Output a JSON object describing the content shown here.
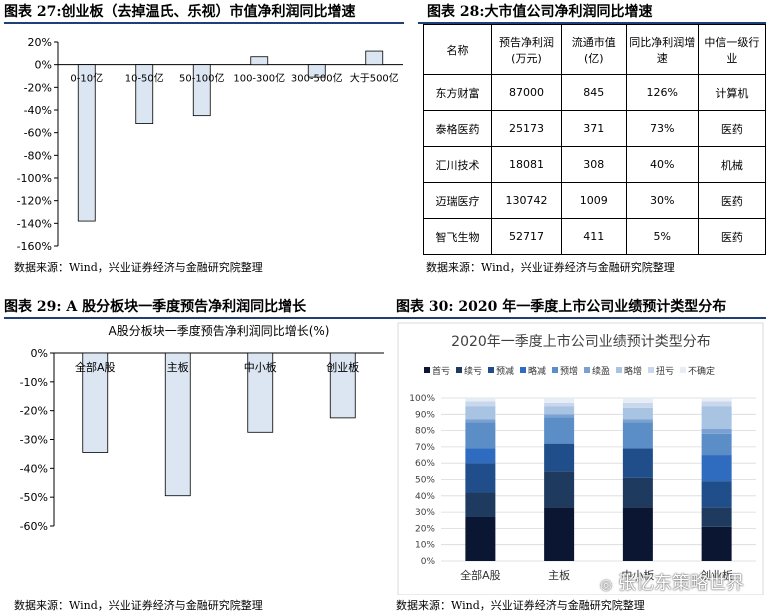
{
  "panel27": {
    "title": "图表 27:创业板（去掉温氏、乐视）市值净利润同比增速",
    "source": "数据来源：Wind，兴业证券经济与金融研究院整理"
  },
  "panel28": {
    "title": "图表 28:大市值公司净利润同比增速",
    "source": "数据来源：Wind，兴业证券经济与金融研究院整理",
    "headers": [
      "名称",
      "预告净利润(万元)",
      "流通市值(亿)",
      "同比净利润增速",
      "中信一级行业"
    ],
    "rows": [
      [
        "东方财富",
        "87000",
        "845",
        "126%",
        "计算机"
      ],
      [
        "泰格医药",
        "25173",
        "371",
        "73%",
        "医药"
      ],
      [
        "汇川技术",
        "18081",
        "308",
        "40%",
        "机械"
      ],
      [
        "迈瑞医疗",
        "130742",
        "1009",
        "30%",
        "医药"
      ],
      [
        "智飞生物",
        "52717",
        "411",
        "5%",
        "医药"
      ]
    ]
  },
  "panel29": {
    "title": "图表 29:  A 股分板块一季度预告净利润同比增长",
    "source": "数据来源：Wind，兴业证券经济与金融研究院整理"
  },
  "panel30": {
    "title": "图表 30:  2020 年一季度上市公司业绩预计类型分布",
    "source": "数据来源：Wind，兴业证券经济与金融研究院整理"
  },
  "watermark": "张忆东策略世界",
  "colors": {
    "bar": "#dce6f2",
    "bar_border": "#000000",
    "header_line": "#1f3f7a"
  },
  "chart_data": [
    {
      "id": "c27",
      "type": "bar",
      "title": "",
      "categories": [
        "0-10亿",
        "10-50亿",
        "50-100亿",
        "100-300亿",
        "300-500亿",
        "大于500亿"
      ],
      "values": [
        -138,
        -52,
        -45,
        7,
        -11,
        12
      ],
      "ylim": [
        -160,
        20
      ],
      "yticks": [
        20,
        0,
        -20,
        -40,
        -60,
        -80,
        -100,
        -120,
        -140,
        -160
      ],
      "ytick_labels": [
        "20%",
        "0%",
        "-20%",
        "-40%",
        "-60%",
        "-80%",
        "-100%",
        "-120%",
        "-140%",
        "-160%"
      ],
      "grid": false
    },
    {
      "id": "c29",
      "type": "bar",
      "title": "A股分板块一季度预告净利润同比增长(%)",
      "categories": [
        "全部A股",
        "主板",
        "中小板",
        "创业板"
      ],
      "values": [
        -34.5,
        -49.5,
        -27.5,
        -22.5
      ],
      "ylim": [
        -60,
        0
      ],
      "yticks": [
        0,
        -10,
        -20,
        -30,
        -40,
        -50,
        -60
      ],
      "ytick_labels": [
        "0%",
        "-10%",
        "-20%",
        "-30%",
        "-40%",
        "-50%",
        "-60%"
      ],
      "grid": false
    },
    {
      "id": "c30",
      "type": "bar",
      "stacked": true,
      "title": "2020年一季度上市公司业绩预计类型分布",
      "categories": [
        "全部A股",
        "主板",
        "中小板",
        "创业板"
      ],
      "ylim": [
        0,
        100
      ],
      "yticks": [
        0,
        10,
        20,
        30,
        40,
        50,
        60,
        70,
        80,
        90,
        100
      ],
      "ytick_labels": [
        "0%",
        "10%",
        "20%",
        "30%",
        "40%",
        "50%",
        "60%",
        "70%",
        "80%",
        "90%",
        "100%"
      ],
      "legend_position": "top",
      "grid": true,
      "series": [
        {
          "name": "首亏",
          "color": "#0b1633",
          "values": [
            27,
            33,
            33,
            21
          ]
        },
        {
          "name": "续亏",
          "color": "#1e3a5f",
          "values": [
            15,
            22,
            18,
            12
          ]
        },
        {
          "name": "预减",
          "color": "#1f4e8a",
          "values": [
            18,
            17,
            18,
            16
          ]
        },
        {
          "name": "略减",
          "color": "#2f6cc0",
          "values": [
            9,
            0,
            0,
            16
          ]
        },
        {
          "name": "预增",
          "color": "#5b8ec7",
          "values": [
            16,
            16,
            16,
            13
          ]
        },
        {
          "name": "续盈",
          "color": "#7aa1d2",
          "values": [
            2,
            2,
            2,
            3
          ]
        },
        {
          "name": "略增",
          "color": "#a9c3e3",
          "values": [
            8,
            5,
            7,
            14
          ]
        },
        {
          "name": "扭亏",
          "color": "#c9d7ec",
          "values": [
            3,
            2,
            3,
            3
          ]
        },
        {
          "name": "不确定",
          "color": "#e6edf7",
          "values": [
            2,
            3,
            3,
            2
          ]
        }
      ]
    }
  ]
}
